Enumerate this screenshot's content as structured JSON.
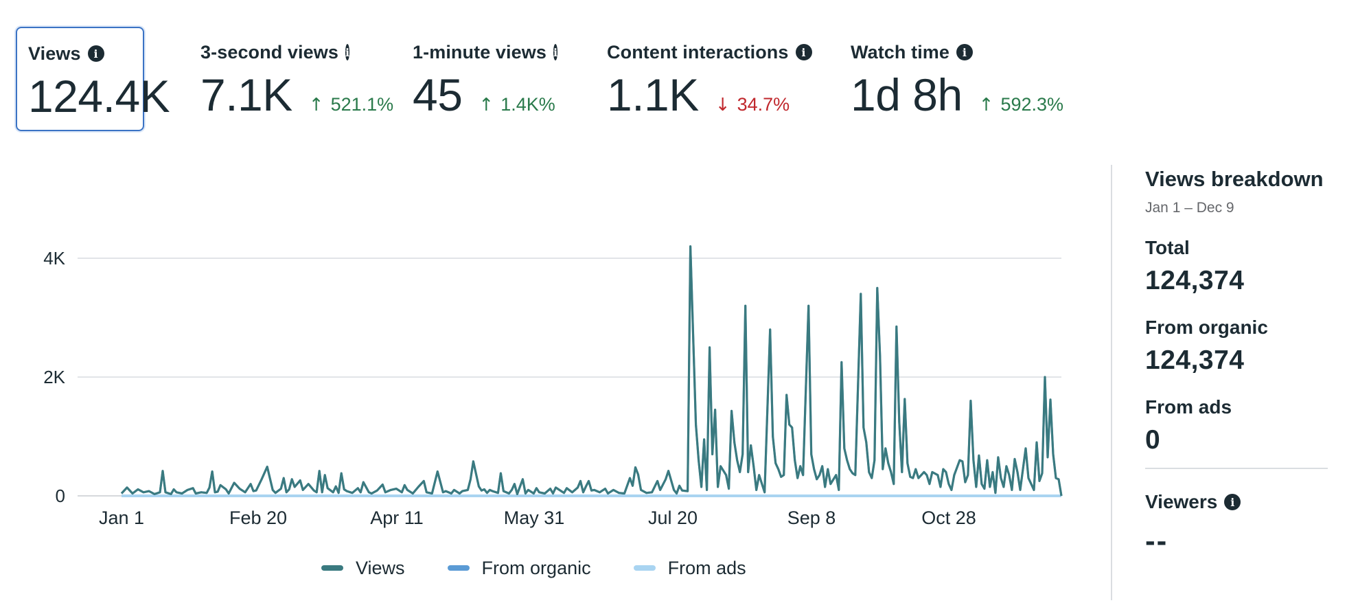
{
  "metrics": [
    {
      "title": "Views",
      "value": "124.4K",
      "delta": "",
      "direction": "none",
      "selected": true
    },
    {
      "title": "3-second views",
      "value": "7.1K",
      "delta": "521.1%",
      "direction": "up",
      "selected": false
    },
    {
      "title": "1-minute views",
      "value": "45",
      "delta": "1.4K%",
      "direction": "up",
      "selected": false
    },
    {
      "title": "Content interactions",
      "value": "1.1K",
      "delta": "34.7%",
      "direction": "down",
      "selected": false
    },
    {
      "title": "Watch time",
      "value": "1d 8h",
      "delta": "592.3%",
      "direction": "up",
      "selected": false
    }
  ],
  "icons": {
    "info": "info-icon",
    "up": "arrow-up-icon",
    "down": "arrow-down-icon"
  },
  "arrows": {
    "up": "↑",
    "down": "↓"
  },
  "colors": {
    "views": "#3a7a80",
    "organic": "#5b9bd5",
    "ads": "#a9d4f1",
    "up": "#2a7a4b",
    "down": "#c0282d",
    "selected_border": "#3b73c4"
  },
  "legend": [
    {
      "label": "Views",
      "color": "#3a7a80"
    },
    {
      "label": "From organic",
      "color": "#5b9bd5"
    },
    {
      "label": "From ads",
      "color": "#a9d4f1"
    }
  ],
  "chart_data": {
    "type": "line",
    "x_tick_labels": [
      "Jan 1",
      "Feb 20",
      "Apr 11",
      "May 31",
      "Jul 20",
      "Sep 8",
      "Oct 28"
    ],
    "y_tick_labels": [
      "0",
      "2K",
      "4K"
    ],
    "y_ticks": [
      0,
      2000,
      4000
    ],
    "ylim": [
      0,
      4200
    ],
    "x_range_days": [
      0,
      342
    ],
    "legend_position": "bottom",
    "series": [
      {
        "name": "Views",
        "points": [
          [
            0,
            40
          ],
          [
            2,
            140
          ],
          [
            4,
            40
          ],
          [
            6,
            110
          ],
          [
            8,
            60
          ],
          [
            10,
            80
          ],
          [
            12,
            30
          ],
          [
            14,
            60
          ],
          [
            15,
            420
          ],
          [
            16,
            60
          ],
          [
            18,
            30
          ],
          [
            19,
            110
          ],
          [
            20,
            60
          ],
          [
            22,
            40
          ],
          [
            24,
            100
          ],
          [
            26,
            130
          ],
          [
            27,
            40
          ],
          [
            29,
            60
          ],
          [
            31,
            50
          ],
          [
            32,
            140
          ],
          [
            33,
            410
          ],
          [
            34,
            60
          ],
          [
            35,
            70
          ],
          [
            36,
            180
          ],
          [
            38,
            110
          ],
          [
            39,
            40
          ],
          [
            41,
            220
          ],
          [
            43,
            120
          ],
          [
            45,
            60
          ],
          [
            47,
            200
          ],
          [
            48,
            80
          ],
          [
            49,
            90
          ],
          [
            51,
            280
          ],
          [
            53,
            490
          ],
          [
            55,
            100
          ],
          [
            56,
            50
          ],
          [
            58,
            120
          ],
          [
            59,
            300
          ],
          [
            60,
            60
          ],
          [
            61,
            110
          ],
          [
            62,
            280
          ],
          [
            63,
            150
          ],
          [
            65,
            260
          ],
          [
            66,
            100
          ],
          [
            68,
            200
          ],
          [
            70,
            90
          ],
          [
            71,
            60
          ],
          [
            72,
            420
          ],
          [
            73,
            60
          ],
          [
            74,
            350
          ],
          [
            75,
            130
          ],
          [
            77,
            60
          ],
          [
            78,
            160
          ],
          [
            79,
            50
          ],
          [
            80,
            380
          ],
          [
            81,
            110
          ],
          [
            82,
            80
          ],
          [
            84,
            50
          ],
          [
            86,
            130
          ],
          [
            87,
            60
          ],
          [
            88,
            230
          ],
          [
            90,
            60
          ],
          [
            91,
            40
          ],
          [
            93,
            90
          ],
          [
            95,
            190
          ],
          [
            96,
            60
          ],
          [
            98,
            100
          ],
          [
            100,
            120
          ],
          [
            102,
            60
          ],
          [
            103,
            180
          ],
          [
            104,
            100
          ],
          [
            106,
            40
          ],
          [
            108,
            150
          ],
          [
            110,
            250
          ],
          [
            111,
            60
          ],
          [
            113,
            40
          ],
          [
            115,
            410
          ],
          [
            117,
            60
          ],
          [
            118,
            80
          ],
          [
            120,
            40
          ],
          [
            121,
            100
          ],
          [
            123,
            40
          ],
          [
            124,
            80
          ],
          [
            126,
            100
          ],
          [
            127,
            280
          ],
          [
            128,
            580
          ],
          [
            130,
            160
          ],
          [
            131,
            90
          ],
          [
            132,
            110
          ],
          [
            133,
            50
          ],
          [
            134,
            100
          ],
          [
            135,
            80
          ],
          [
            137,
            50
          ],
          [
            138,
            380
          ],
          [
            139,
            80
          ],
          [
            141,
            40
          ],
          [
            142,
            100
          ],
          [
            143,
            200
          ],
          [
            144,
            30
          ],
          [
            146,
            280
          ],
          [
            147,
            40
          ],
          [
            148,
            100
          ],
          [
            150,
            40
          ],
          [
            151,
            130
          ],
          [
            152,
            60
          ],
          [
            154,
            40
          ],
          [
            156,
            120
          ],
          [
            157,
            40
          ],
          [
            158,
            140
          ],
          [
            160,
            80
          ],
          [
            161,
            50
          ],
          [
            162,
            130
          ],
          [
            164,
            60
          ],
          [
            165,
            100
          ],
          [
            166,
            140
          ],
          [
            167,
            250
          ],
          [
            168,
            60
          ],
          [
            169,
            160
          ],
          [
            170,
            250
          ],
          [
            171,
            90
          ],
          [
            172,
            100
          ],
          [
            174,
            60
          ],
          [
            176,
            120
          ],
          [
            177,
            40
          ],
          [
            179,
            100
          ],
          [
            181,
            50
          ],
          [
            183,
            40
          ],
          [
            185,
            300
          ],
          [
            186,
            170
          ],
          [
            187,
            480
          ],
          [
            188,
            360
          ],
          [
            189,
            100
          ],
          [
            191,
            50
          ],
          [
            193,
            60
          ],
          [
            195,
            250
          ],
          [
            196,
            100
          ],
          [
            198,
            280
          ],
          [
            199,
            420
          ],
          [
            201,
            100
          ],
          [
            202,
            40
          ],
          [
            203,
            170
          ],
          [
            204,
            90
          ],
          [
            206,
            80
          ],
          [
            207,
            4200
          ],
          [
            208,
            2700
          ],
          [
            209,
            1200
          ],
          [
            210,
            600
          ],
          [
            211,
            150
          ],
          [
            212,
            950
          ],
          [
            213,
            100
          ],
          [
            214,
            2500
          ],
          [
            215,
            700
          ],
          [
            216,
            1450
          ],
          [
            217,
            150
          ],
          [
            218,
            500
          ],
          [
            220,
            350
          ],
          [
            221,
            120
          ],
          [
            222,
            1430
          ],
          [
            223,
            900
          ],
          [
            224,
            600
          ],
          [
            225,
            400
          ],
          [
            226,
            700
          ],
          [
            227,
            3200
          ],
          [
            228,
            400
          ],
          [
            229,
            850
          ],
          [
            230,
            500
          ],
          [
            231,
            100
          ],
          [
            232,
            350
          ],
          [
            234,
            60
          ],
          [
            236,
            2800
          ],
          [
            237,
            1000
          ],
          [
            238,
            550
          ],
          [
            239,
            450
          ],
          [
            240,
            320
          ],
          [
            241,
            350
          ],
          [
            242,
            1700
          ],
          [
            243,
            1200
          ],
          [
            244,
            1150
          ],
          [
            245,
            600
          ],
          [
            246,
            300
          ],
          [
            247,
            500
          ],
          [
            248,
            350
          ],
          [
            250,
            3200
          ],
          [
            251,
            700
          ],
          [
            252,
            450
          ],
          [
            253,
            280
          ],
          [
            254,
            350
          ],
          [
            255,
            500
          ],
          [
            256,
            150
          ],
          [
            257,
            450
          ],
          [
            258,
            200
          ],
          [
            260,
            350
          ],
          [
            261,
            100
          ],
          [
            262,
            2250
          ],
          [
            263,
            800
          ],
          [
            264,
            600
          ],
          [
            265,
            450
          ],
          [
            266,
            380
          ],
          [
            267,
            350
          ],
          [
            269,
            3400
          ],
          [
            270,
            1150
          ],
          [
            271,
            900
          ],
          [
            272,
            400
          ],
          [
            273,
            300
          ],
          [
            274,
            600
          ],
          [
            275,
            3500
          ],
          [
            276,
            2350
          ],
          [
            277,
            450
          ],
          [
            278,
            800
          ],
          [
            279,
            550
          ],
          [
            280,
            400
          ],
          [
            281,
            200
          ],
          [
            282,
            2850
          ],
          [
            283,
            1250
          ],
          [
            284,
            400
          ],
          [
            285,
            1630
          ],
          [
            286,
            550
          ],
          [
            287,
            320
          ],
          [
            288,
            300
          ],
          [
            289,
            450
          ],
          [
            290,
            300
          ],
          [
            292,
            400
          ],
          [
            293,
            350
          ],
          [
            294,
            200
          ],
          [
            295,
            400
          ],
          [
            297,
            350
          ],
          [
            298,
            150
          ],
          [
            299,
            450
          ],
          [
            300,
            400
          ],
          [
            301,
            200
          ],
          [
            302,
            100
          ],
          [
            303,
            350
          ],
          [
            305,
            600
          ],
          [
            306,
            580
          ],
          [
            307,
            230
          ],
          [
            308,
            350
          ],
          [
            309,
            1600
          ],
          [
            310,
            600
          ],
          [
            311,
            150
          ],
          [
            312,
            680
          ],
          [
            313,
            200
          ],
          [
            314,
            120
          ],
          [
            315,
            600
          ],
          [
            316,
            150
          ],
          [
            317,
            400
          ],
          [
            318,
            50
          ],
          [
            319,
            650
          ],
          [
            320,
            300
          ],
          [
            321,
            150
          ],
          [
            322,
            500
          ],
          [
            323,
            350
          ],
          [
            324,
            100
          ],
          [
            325,
            620
          ],
          [
            326,
            400
          ],
          [
            327,
            100
          ],
          [
            329,
            800
          ],
          [
            330,
            300
          ],
          [
            331,
            200
          ],
          [
            332,
            100
          ],
          [
            333,
            900
          ],
          [
            334,
            250
          ],
          [
            335,
            380
          ],
          [
            336,
            2000
          ],
          [
            337,
            650
          ],
          [
            338,
            1620
          ],
          [
            339,
            700
          ],
          [
            340,
            300
          ],
          [
            341,
            280
          ],
          [
            342,
            0
          ]
        ]
      },
      {
        "name": "From organic",
        "note": "overlaps Views"
      },
      {
        "name": "From ads",
        "constant_value": 0
      }
    ]
  },
  "panel": {
    "title": "Views breakdown",
    "date_range": "Jan 1 – Dec 9",
    "total_label": "Total",
    "total_value": "124,374",
    "organic_label": "From organic",
    "organic_value": "124,374",
    "ads_label": "From ads",
    "ads_value": "0",
    "viewers_label": "Viewers",
    "viewers_value": "--"
  }
}
